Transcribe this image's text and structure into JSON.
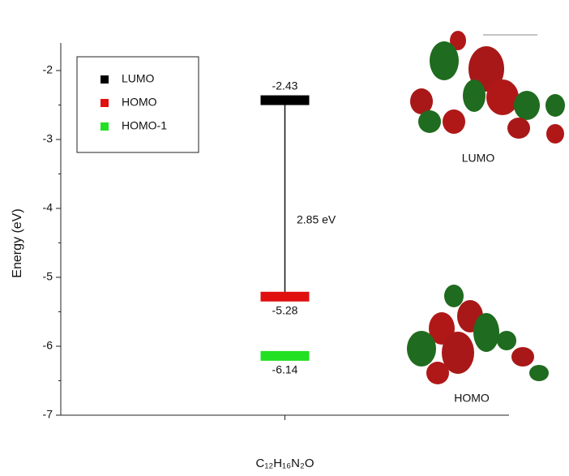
{
  "chart_data": {
    "type": "energy-level",
    "ylabel": "Energy (eV)",
    "categories": [
      "C₁₂H₁₆N₂O"
    ],
    "series": [
      {
        "name": "LUMO",
        "color": "#000000",
        "values": [
          -2.43
        ]
      },
      {
        "name": "HOMO",
        "color": "#e01010",
        "values": [
          -5.28
        ]
      },
      {
        "name": "HOMO-1",
        "color": "#22e022",
        "values": [
          -6.14
        ]
      }
    ],
    "ylim": [
      -7,
      -1.6
    ],
    "yticks": [
      -7,
      -6,
      -5,
      -4,
      -3,
      -2
    ],
    "gap_label": "2.85 eV",
    "image_labels": [
      "LUMO",
      "HOMO"
    ],
    "legend": "upper left"
  }
}
